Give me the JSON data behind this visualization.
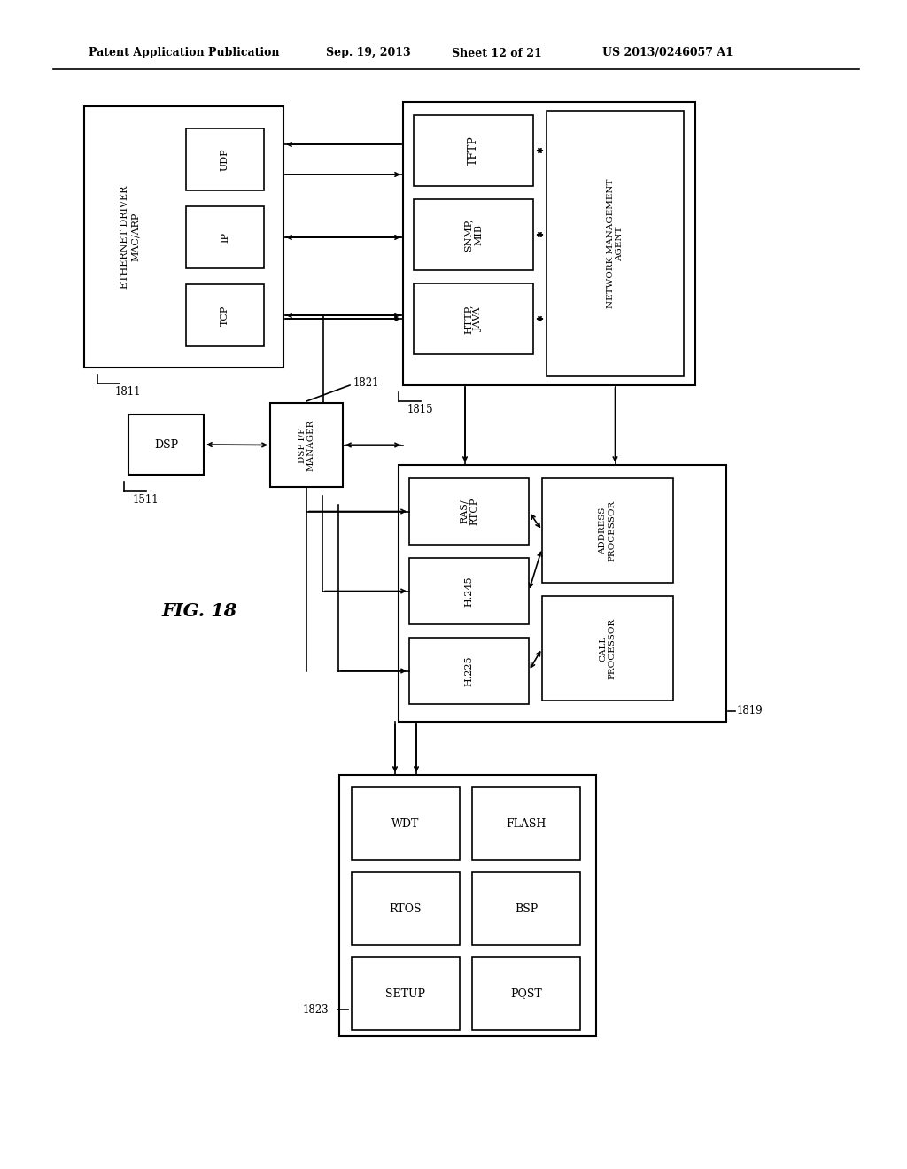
{
  "bg_color": "#ffffff",
  "header_text": "Patent Application Publication",
  "header_date": "Sep. 19, 2013",
  "header_sheet": "Sheet 12 of 21",
  "header_patent": "US 2013/0246057 A1",
  "fig_label": "FIG. 18",
  "box_color": "#000000",
  "text_color": "#000000",
  "line_color": "#000000"
}
